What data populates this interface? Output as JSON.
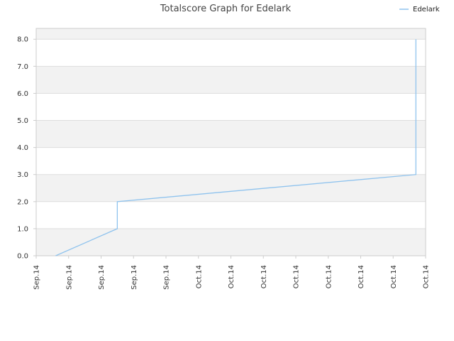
{
  "chart_data": {
    "type": "line",
    "title": "Totalscore Graph for Edelark",
    "xlabel": "",
    "ylabel": "",
    "ylim": [
      0,
      8.4
    ],
    "yticks": [
      "0.0",
      "1.0",
      "2.0",
      "3.0",
      "4.0",
      "5.0",
      "6.0",
      "7.0",
      "8.0"
    ],
    "xticks": [
      "Sep.14",
      "Sep.14",
      "Sep.14",
      "Sep.14",
      "Sep.14",
      "Oct.14",
      "Oct.14",
      "Oct.14",
      "Oct.14",
      "Oct.14",
      "Oct.14",
      "Oct.14",
      "Oct.14"
    ],
    "x_range": [
      0,
      12
    ],
    "grid": "horizontal bands",
    "legend_position": "top-right",
    "colors": {
      "series": "#8fc3ee",
      "band_shaded": "#f2f2f2",
      "band_plain": "#ffffff",
      "gridline": "#dddddd",
      "axis": "#cccccc"
    },
    "series": [
      {
        "name": "Edelark",
        "x": [
          0.6,
          2.5,
          2.5,
          11.7,
          11.7
        ],
        "y": [
          0,
          1,
          2,
          3,
          8
        ]
      }
    ]
  }
}
